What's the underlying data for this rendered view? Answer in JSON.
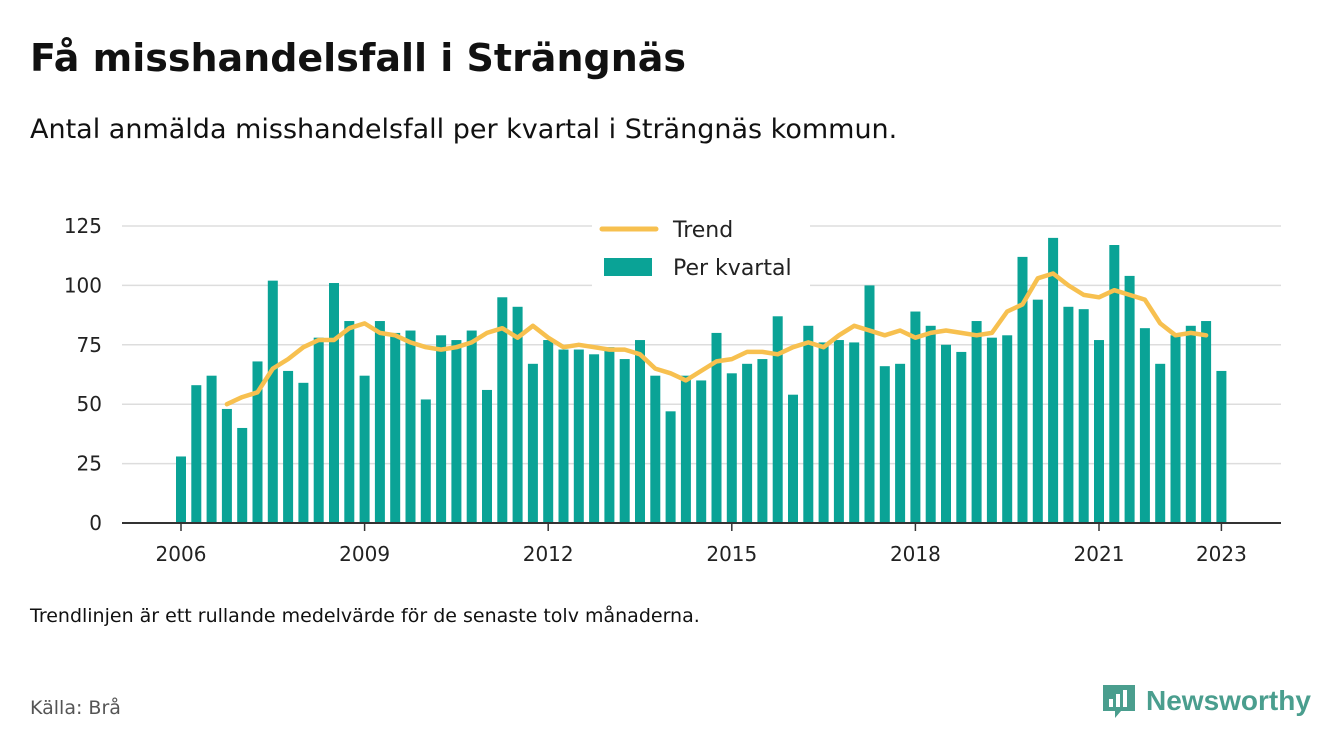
{
  "title": "Få misshandelsfall i Strängnäs",
  "subtitle": "Antal anmälda misshandelsfall per kvartal i Strängnäs kommun.",
  "note": "Trendlinjen är ett rullande medelvärde för de senaste tolv månaderna.",
  "source": "Källa: Brå",
  "brand": {
    "name": "Newsworthy",
    "icon": "newsworthy-logo-icon",
    "color": "#4a9e8e"
  },
  "legend": {
    "trend_label": "Trend",
    "bars_label": "Per kvartal"
  },
  "colors": {
    "bars": "#0aa396",
    "trend": "#f7c04f",
    "grid": "#dddddd",
    "axis": "#333333"
  },
  "chart_data": {
    "type": "bar",
    "x_tick_labels": [
      "2006",
      "2009",
      "2012",
      "2015",
      "2018",
      "2021",
      "2023"
    ],
    "x_tick_quarters": [
      0,
      12,
      24,
      36,
      48,
      60,
      68
    ],
    "ylim": [
      0,
      125
    ],
    "yticks": [
      0,
      25,
      50,
      75,
      100,
      125
    ],
    "grid": true,
    "legend_position": "top-center",
    "series": [
      {
        "name": "Per kvartal",
        "type": "bar",
        "start": "2006 Q1",
        "values": [
          28,
          58,
          62,
          48,
          40,
          68,
          102,
          64,
          59,
          78,
          101,
          85,
          62,
          85,
          80,
          81,
          52,
          79,
          77,
          81,
          56,
          95,
          91,
          67,
          77,
          73,
          73,
          71,
          74,
          69,
          77,
          62,
          47,
          62,
          60,
          80,
          63,
          67,
          69,
          87,
          54,
          83,
          76,
          77,
          76,
          100,
          66,
          67,
          89,
          83,
          75,
          72,
          85,
          78,
          79,
          112,
          94,
          120,
          91,
          90,
          77,
          117,
          104,
          82,
          67,
          79,
          83,
          85,
          64
        ]
      },
      {
        "name": "Trend",
        "type": "line",
        "start": "2006 Q4",
        "values": [
          50,
          53,
          55,
          65,
          69,
          74,
          77,
          77,
          82,
          84,
          80,
          79,
          76,
          74,
          73,
          74,
          76,
          80,
          82,
          78,
          83,
          78,
          74,
          75,
          74,
          73,
          73,
          71,
          65,
          63,
          60,
          64,
          68,
          69,
          72,
          72,
          71,
          74,
          76,
          74,
          79,
          83,
          81,
          79,
          81,
          78,
          80,
          81,
          80,
          79,
          80,
          89,
          92,
          103,
          105,
          100,
          96,
          95,
          98,
          96,
          94,
          84,
          79,
          80,
          79
        ]
      }
    ]
  }
}
